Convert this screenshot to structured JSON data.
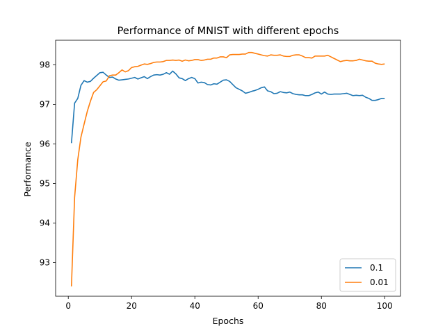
{
  "chart_data": {
    "type": "line",
    "title": "Performance of MNIST with different epochs",
    "xlabel": "Epochs",
    "ylabel": "Performance",
    "xlim": [
      -4,
      105
    ],
    "ylim": [
      92.15,
      98.62
    ],
    "xticks": [
      0,
      20,
      40,
      60,
      80,
      100
    ],
    "yticks": [
      93,
      94,
      95,
      96,
      97,
      98
    ],
    "grid": false,
    "legend_position": "lower-right",
    "x": [
      1,
      2,
      3,
      4,
      5,
      6,
      7,
      8,
      9,
      10,
      11,
      12,
      13,
      14,
      15,
      16,
      17,
      18,
      19,
      20,
      21,
      22,
      23,
      24,
      25,
      26,
      27,
      28,
      29,
      30,
      31,
      32,
      33,
      34,
      35,
      36,
      37,
      38,
      39,
      40,
      41,
      42,
      43,
      44,
      45,
      46,
      47,
      48,
      49,
      50,
      51,
      52,
      53,
      54,
      55,
      56,
      57,
      58,
      59,
      60,
      61,
      62,
      63,
      64,
      65,
      66,
      67,
      68,
      69,
      70,
      71,
      72,
      73,
      74,
      75,
      76,
      77,
      78,
      79,
      80,
      81,
      82,
      83,
      84,
      85,
      86,
      87,
      88,
      89,
      90,
      91,
      92,
      93,
      94,
      95,
      96,
      97,
      98,
      99,
      100
    ],
    "series": [
      {
        "name": "0.1",
        "color": "#1f77b4",
        "values": [
          96.02,
          97.03,
          97.15,
          97.48,
          97.6,
          97.56,
          97.58,
          97.66,
          97.73,
          97.8,
          97.81,
          97.74,
          97.68,
          97.69,
          97.64,
          97.61,
          97.62,
          97.63,
          97.64,
          97.66,
          97.68,
          97.64,
          97.67,
          97.7,
          97.65,
          97.7,
          97.74,
          97.75,
          97.74,
          97.76,
          97.8,
          97.76,
          97.84,
          97.77,
          97.67,
          97.65,
          97.6,
          97.65,
          97.68,
          97.65,
          97.54,
          97.56,
          97.55,
          97.5,
          97.49,
          97.52,
          97.51,
          97.56,
          97.61,
          97.62,
          97.58,
          97.5,
          97.42,
          97.38,
          97.34,
          97.28,
          97.3,
          97.33,
          97.35,
          97.38,
          97.42,
          97.44,
          97.34,
          97.32,
          97.27,
          97.28,
          97.32,
          97.3,
          97.29,
          97.31,
          97.27,
          97.25,
          97.24,
          97.24,
          97.22,
          97.22,
          97.25,
          97.29,
          97.31,
          97.26,
          97.31,
          97.26,
          97.25,
          97.26,
          97.26,
          97.26,
          97.27,
          97.28,
          97.25,
          97.22,
          97.23,
          97.22,
          97.23,
          97.18,
          97.15,
          97.1,
          97.1,
          97.12,
          97.15,
          97.15
        ]
      },
      {
        "name": "0.01",
        "color": "#ff7f0e",
        "values": [
          92.4,
          94.65,
          95.6,
          96.17,
          96.5,
          96.82,
          97.08,
          97.3,
          97.37,
          97.47,
          97.57,
          97.59,
          97.72,
          97.74,
          97.74,
          97.8,
          97.87,
          97.82,
          97.85,
          97.93,
          97.95,
          97.96,
          97.99,
          98.02,
          98.01,
          98.03,
          98.06,
          98.07,
          98.07,
          98.08,
          98.11,
          98.11,
          98.12,
          98.11,
          98.12,
          98.09,
          98.12,
          98.1,
          98.11,
          98.13,
          98.13,
          98.11,
          98.12,
          98.14,
          98.14,
          98.17,
          98.17,
          98.2,
          98.2,
          98.18,
          98.25,
          98.26,
          98.26,
          98.26,
          98.27,
          98.27,
          98.31,
          98.31,
          98.29,
          98.27,
          98.25,
          98.23,
          98.22,
          98.25,
          98.24,
          98.24,
          98.25,
          98.22,
          98.21,
          98.21,
          98.24,
          98.25,
          98.25,
          98.22,
          98.18,
          98.18,
          98.17,
          98.22,
          98.22,
          98.22,
          98.22,
          98.24,
          98.2,
          98.16,
          98.12,
          98.08,
          98.1,
          98.11,
          98.1,
          98.1,
          98.11,
          98.14,
          98.12,
          98.1,
          98.09,
          98.09,
          98.04,
          98.02,
          98.01,
          98.02
        ]
      }
    ]
  }
}
